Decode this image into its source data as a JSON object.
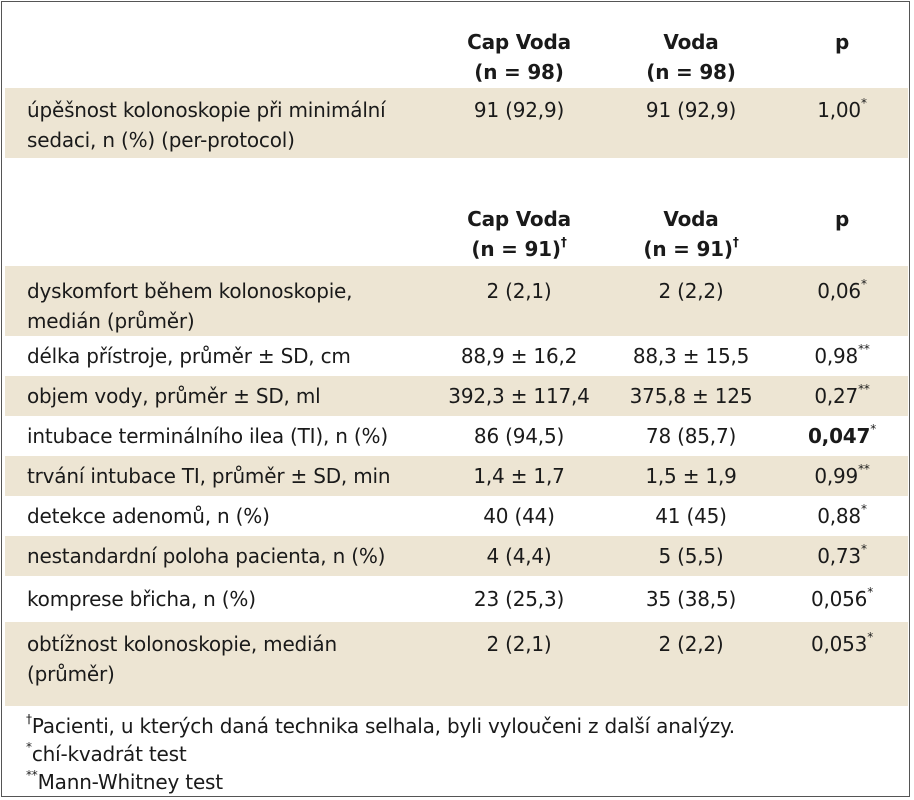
{
  "header1": {
    "col1_line1": "Cap Voda",
    "col1_line2": "(n = 98)",
    "col2_line1": "Voda",
    "col2_line2": "(n = 98)",
    "col3": "p"
  },
  "row_success": {
    "label_line1": "úpěšnost kolonoskopie při minimální",
    "label_line2": "sedaci, n (%) (per-protocol)",
    "v1": "91 (92,9)",
    "v2": "91 (92,9)",
    "p": "1,00",
    "mark": "*"
  },
  "header2": {
    "col1_line1": "Cap Voda",
    "col1_line2": "(n = 91)",
    "col1_mark": "†",
    "col2_line1": "Voda",
    "col2_line2": "(n = 91)",
    "col2_mark": "†",
    "col3": "p"
  },
  "rows": [
    {
      "label_line1": "dyskomfort během kolonoskopie,",
      "label_line2": "medián (průměr)",
      "v1": "2 (2,1)",
      "v2": "2 (2,2)",
      "p": "0,06",
      "mark": "*"
    },
    {
      "label_line1": "délka přístroje, průměr ± SD, cm",
      "v1": "88,9 ± 16,2",
      "v2": "88,3 ± 15,5",
      "p": "0,98",
      "mark": "**"
    },
    {
      "label_line1": "objem vody, průměr ± SD, ml",
      "v1": "392,3 ± 117,4",
      "v2": "375,8 ± 125",
      "p": "0,27",
      "mark": "**"
    },
    {
      "label_line1": "intubace terminálního ilea (TI), n (%)",
      "v1": "86 (94,5)",
      "v2": "78 (85,7)",
      "p": "0,047",
      "mark": "*"
    },
    {
      "label_line1": "trvání intubace TI, průměr ± SD, min",
      "v1": "1,4 ± 1,7",
      "v2": "1,5 ± 1,9",
      "p": "0,99",
      "mark": "**"
    },
    {
      "label_line1": "detekce adenomů, n (%)",
      "v1": "40 (44)",
      "v2": "41 (45)",
      "p": "0,88",
      "mark": "*"
    },
    {
      "label_line1": "nestandardní poloha pacienta, n (%)",
      "v1": "4 (4,4)",
      "v2": "5 (5,5)",
      "p": "0,73",
      "mark": "*"
    },
    {
      "label_line1": "komprese břicha, n (%)",
      "v1": "23 (25,3)",
      "v2": "35 (38,5)",
      "p": "0,056",
      "mark": "*"
    },
    {
      "label_line1": "obtížnost kolonoskopie, medián",
      "label_line2": "(průměr)",
      "v1": "2 (2,1)",
      "v2": "2 (2,2)",
      "p": "0,053",
      "mark": "*"
    }
  ],
  "footnotes": {
    "f1_mark": "†",
    "f1_text": "Pacienti, u kterých daná technika selhala, byli vyloučeni z další analýzy.",
    "f2_mark": "*",
    "f2_text": "chí-kvadrát test",
    "f3_mark": "**",
    "f3_text": "Mann-Whitney test"
  },
  "colors": {
    "band": "#ede5d3",
    "border": "#555555"
  }
}
